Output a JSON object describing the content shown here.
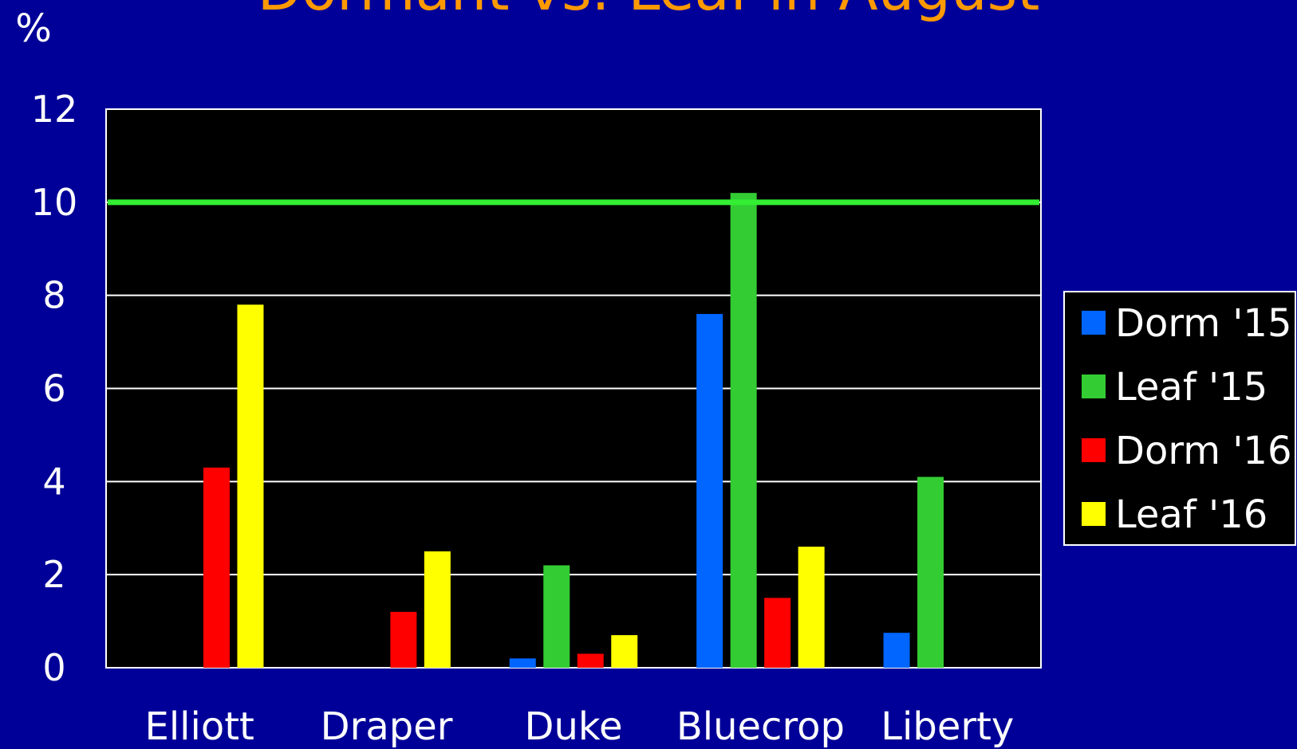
{
  "chart_data": {
    "type": "bar",
    "title": "Dormant vs. Leaf in August",
    "ylabel": "%",
    "xlabel": "",
    "ylim": [
      0,
      12
    ],
    "yticks": [
      0,
      2,
      4,
      6,
      8,
      10,
      12
    ],
    "categories": [
      "Elliott",
      "Draper",
      "Duke",
      "Bluecrop",
      "Liberty"
    ],
    "series": [
      {
        "name": "Dorm '15",
        "color": "#0066FF",
        "values": [
          0,
          0,
          0.2,
          7.6,
          0.75
        ]
      },
      {
        "name": "Leaf '15",
        "color": "#33CC33",
        "values": [
          0,
          0,
          2.2,
          10.2,
          4.1
        ]
      },
      {
        "name": "Dorm '16",
        "color": "#FF0000",
        "values": [
          4.3,
          1.2,
          0.3,
          1.5,
          0
        ]
      },
      {
        "name": "Leaf '16",
        "color": "#FFFF00",
        "values": [
          7.8,
          2.5,
          0.7,
          2.6,
          0
        ]
      }
    ],
    "reference_line": {
      "value": 10,
      "color": "#33EE33"
    },
    "grid": true,
    "legend_position": "right",
    "colors": {
      "background": "#000098",
      "plot_background": "#000000",
      "title": "#FF9900",
      "text": "#FFFFFF",
      "gridline": "#FFFFFF"
    }
  }
}
